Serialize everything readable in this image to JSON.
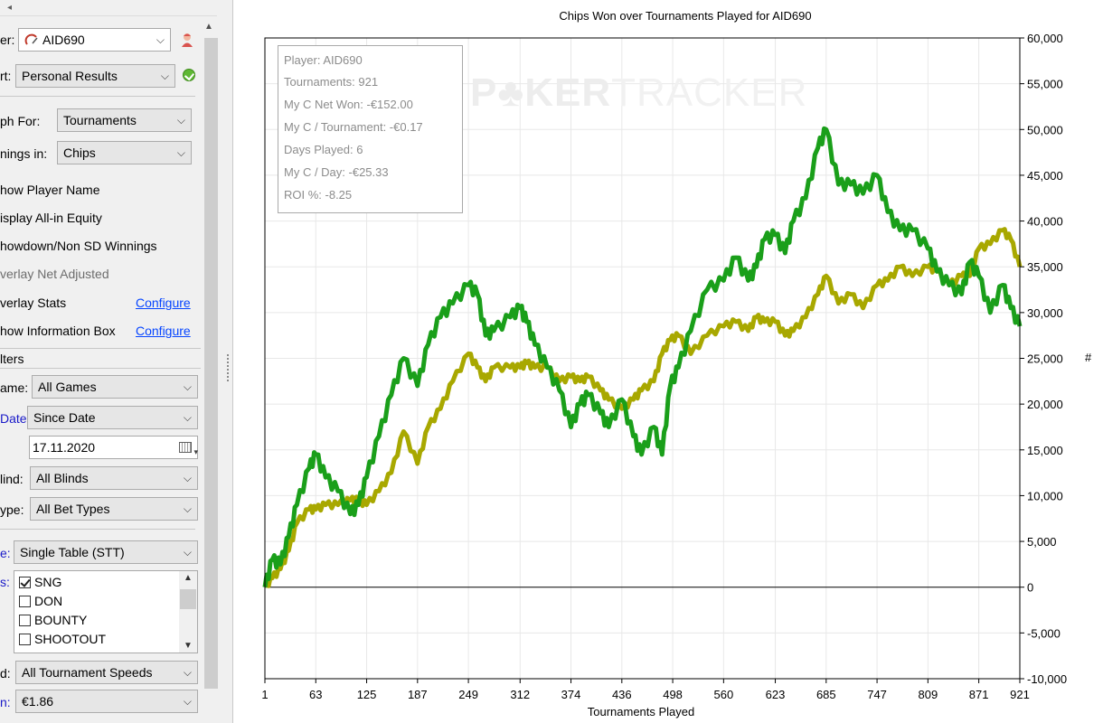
{
  "sidebar": {
    "scroll_left_arrow": "◂",
    "player": {
      "label": "er:",
      "value": "AID690"
    },
    "report": {
      "label": "rt:",
      "value": "Personal Results"
    },
    "graph_for": {
      "label": "ph For:",
      "value": "Tournaments"
    },
    "winnings_in": {
      "label": "nings in:",
      "value": "Chips"
    },
    "options": [
      {
        "text": "how Player Name",
        "style": "normal"
      },
      {
        "text": "isplay All-in Equity",
        "style": "normal"
      },
      {
        "text": "howdown/Non SD Winnings",
        "style": "normal"
      },
      {
        "text": "verlay Net Adjusted",
        "style": "gray"
      },
      {
        "text": "verlay Stats",
        "style": "normal",
        "link": "Configure"
      },
      {
        "text": "how Information Box",
        "style": "normal",
        "link": "Configure"
      }
    ],
    "filters_header": "lters",
    "game": {
      "label": "ame:",
      "value": "All Games"
    },
    "date": {
      "label": "Date:",
      "value": "Since Date",
      "date_value": "17.11.2020"
    },
    "blind": {
      "label": "lind:",
      "value": "All Blinds"
    },
    "bet_type": {
      "label": "ype:",
      "value": "All Bet Types"
    },
    "table_type": {
      "label": "e:",
      "value": "Single Table (STT)"
    },
    "types": {
      "label": "s:",
      "items": [
        {
          "text": "SNG",
          "checked": true
        },
        {
          "text": "DON",
          "checked": false
        },
        {
          "text": "BOUNTY",
          "checked": false
        },
        {
          "text": "SHOOTOUT",
          "checked": false
        }
      ]
    },
    "speed": {
      "label": "d:",
      "value": "All Tournament Speeds"
    },
    "buyin": {
      "label": "n:",
      "value": "€1.86"
    }
  },
  "info_box": {
    "lines": [
      "Player: AID690",
      "Tournaments: 921",
      "My C Net Won: -€152.00",
      "My C / Tournament: -€0.17",
      "Days Played: 6",
      "My C / Day: -€25.33",
      "ROI %: -8.25"
    ]
  },
  "watermark": {
    "bold": "P♣KER",
    "thin": "TRACKER"
  },
  "colors": {
    "series_green": "#1a9f1a",
    "series_olive": "#a8a800",
    "link": "#0645ff"
  },
  "chart_data": {
    "type": "line",
    "title": "Chips Won over Tournaments Played for AID690",
    "xlabel": "Tournaments Played",
    "ylabel": "#",
    "xlim": [
      1,
      921
    ],
    "ylim": [
      -10000,
      60000
    ],
    "x_ticks": [
      "1",
      "63",
      "125",
      "187",
      "249",
      "312",
      "374",
      "436",
      "498",
      "560",
      "623",
      "685",
      "747",
      "809",
      "871",
      "921"
    ],
    "y_ticks": [
      "60,000",
      "55,000",
      "50,000",
      "45,000",
      "40,000",
      "35,000",
      "30,000",
      "25,000",
      "20,000",
      "15,000",
      "10,000",
      "5,000",
      "0",
      "-5,000",
      "-10,000"
    ],
    "grid": true,
    "series": [
      {
        "color": "#1a9f1a",
        "x": [
          1,
          10,
          20,
          30,
          40,
          55,
          63,
          75,
          90,
          105,
          115,
          125,
          140,
          155,
          170,
          187,
          200,
          215,
          230,
          249,
          260,
          270,
          280,
          300,
          312,
          320,
          330,
          345,
          360,
          374,
          385,
          395,
          410,
          420,
          436,
          450,
          460,
          475,
          485,
          495,
          505,
          520,
          540,
          560,
          575,
          590,
          600,
          610,
          623,
          635,
          645,
          660,
          675,
          685,
          700,
          715,
          730,
          747,
          760,
          775,
          790,
          809,
          820,
          835,
          850,
          860,
          871,
          885,
          900,
          910,
          921
        ],
        "y": [
          0,
          3000,
          2500,
          5500,
          9000,
          13000,
          14500,
          12000,
          10500,
          8000,
          9000,
          12000,
          16500,
          21000,
          25000,
          22000,
          26500,
          29500,
          31000,
          33000,
          32000,
          27500,
          28000,
          29500,
          30500,
          29000,
          26500,
          24000,
          21500,
          17500,
          20000,
          21000,
          19000,
          17500,
          20500,
          16500,
          14500,
          17500,
          14500,
          22000,
          24000,
          28000,
          32500,
          33500,
          36000,
          33500,
          35000,
          38000,
          38500,
          36500,
          40000,
          42500,
          48000,
          50000,
          44000,
          44000,
          43000,
          45000,
          41000,
          39000,
          39000,
          37000,
          34500,
          33000,
          32000,
          35500,
          34000,
          30000,
          33000,
          30500,
          28500
        ]
      },
      {
        "color": "#a8a800",
        "x": [
          1,
          10,
          20,
          30,
          40,
          55,
          63,
          75,
          90,
          105,
          115,
          125,
          140,
          155,
          170,
          187,
          200,
          215,
          230,
          249,
          260,
          270,
          280,
          300,
          312,
          320,
          330,
          345,
          360,
          374,
          385,
          395,
          410,
          420,
          436,
          450,
          460,
          475,
          485,
          495,
          505,
          520,
          540,
          560,
          575,
          590,
          600,
          610,
          623,
          635,
          645,
          660,
          675,
          685,
          700,
          715,
          730,
          747,
          760,
          775,
          790,
          809,
          820,
          835,
          850,
          860,
          871,
          885,
          900,
          910,
          921
        ],
        "y": [
          0,
          1000,
          2000,
          4000,
          7000,
          8500,
          8500,
          9000,
          9000,
          9500,
          9500,
          9000,
          10500,
          12500,
          17000,
          13500,
          17500,
          19500,
          22500,
          25500,
          24000,
          22500,
          24000,
          24000,
          24000,
          24500,
          24000,
          24000,
          22500,
          23000,
          22500,
          23000,
          21500,
          20500,
          19500,
          20500,
          21500,
          22500,
          25500,
          27000,
          27500,
          25500,
          27500,
          28500,
          29000,
          28000,
          29500,
          29000,
          29000,
          27500,
          28000,
          29500,
          32000,
          34000,
          31000,
          32000,
          30500,
          33000,
          33500,
          35000,
          34000,
          35000,
          34500,
          33000,
          34000,
          34000,
          37000,
          37500,
          39000,
          38000,
          35000
        ]
      }
    ]
  }
}
